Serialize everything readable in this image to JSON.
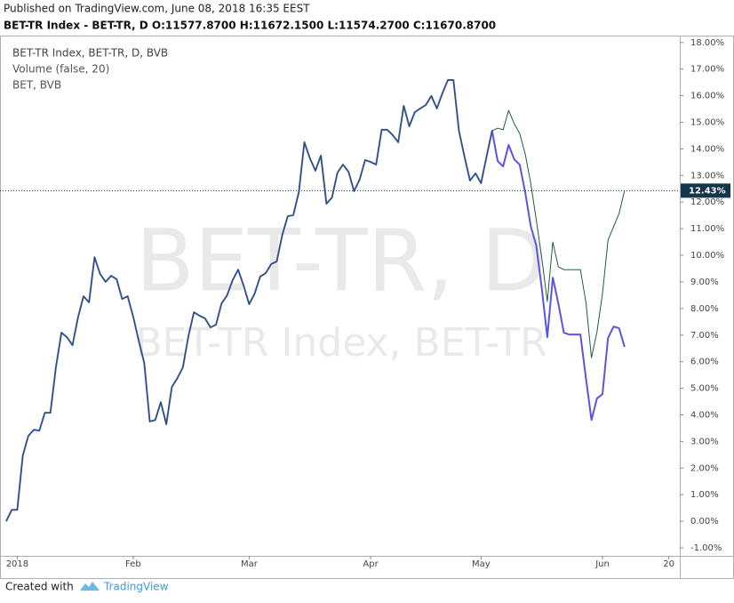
{
  "header": {
    "published": "Published on TradingView.com, June 08, 2018 16:35 EEST",
    "symbol_line": "BET-TR Index - BET-TR, D O:11577.8700 H:11672.1500 L:11574.2700 C:11670.8700"
  },
  "footer": {
    "created": "Created with",
    "brand": "TradingView"
  },
  "chart_data": {
    "type": "line",
    "watermark": [
      "BET-TR, D",
      "BET-TR Index, BET-TR"
    ],
    "indicator": "Volume (false, 20)",
    "x": [
      0,
      1,
      2,
      3,
      4,
      5,
      6,
      7,
      8,
      9,
      10,
      11,
      12,
      13,
      14,
      15,
      16,
      17,
      18,
      19,
      20,
      21,
      22,
      23,
      24,
      25,
      26,
      27,
      28,
      29,
      30,
      31,
      32,
      33,
      34,
      35,
      36,
      37,
      38,
      39,
      40,
      41,
      42,
      43,
      44,
      45,
      46,
      47,
      48,
      49,
      50,
      51,
      52,
      53,
      54,
      55,
      56,
      57,
      58,
      59,
      60,
      61,
      62,
      63,
      64,
      65,
      66,
      67,
      68,
      69,
      70,
      71,
      72,
      73,
      74,
      75,
      76,
      77,
      78,
      79,
      80,
      81,
      82,
      83,
      84,
      85,
      86,
      87,
      88,
      89,
      90,
      91,
      92,
      93,
      94,
      95,
      96,
      97,
      98,
      99,
      100,
      101,
      102,
      103,
      104,
      105,
      106,
      107,
      108,
      109,
      110,
      111,
      112
    ],
    "series": [
      {
        "name": "BET-TR Index, BET-TR, D, BVB",
        "color": "#1e5e3e",
        "width": 1,
        "last_value_label": "12.43%",
        "values": [
          0.0,
          0.43,
          0.43,
          2.47,
          3.21,
          3.44,
          3.41,
          4.08,
          4.08,
          5.79,
          7.09,
          6.92,
          6.62,
          7.66,
          8.46,
          8.23,
          9.93,
          9.3,
          9.0,
          9.23,
          9.1,
          8.36,
          8.46,
          7.69,
          6.79,
          5.95,
          3.75,
          3.81,
          4.48,
          3.65,
          5.05,
          5.38,
          5.79,
          6.96,
          7.86,
          7.73,
          7.63,
          7.29,
          7.39,
          8.19,
          8.49,
          9.06,
          9.46,
          8.86,
          8.16,
          8.56,
          9.2,
          9.33,
          9.67,
          9.77,
          10.77,
          11.47,
          11.51,
          12.37,
          14.25,
          13.65,
          13.18,
          13.75,
          11.94,
          12.17,
          13.11,
          13.41,
          13.14,
          12.41,
          12.84,
          13.58,
          13.51,
          13.41,
          14.72,
          14.72,
          14.52,
          14.25,
          15.62,
          14.85,
          15.38,
          15.52,
          15.65,
          15.99,
          15.52,
          16.09,
          16.59,
          16.59,
          14.68,
          13.71,
          12.81,
          13.08,
          12.71,
          13.71,
          14.68,
          14.78,
          14.72,
          15.45,
          14.95,
          14.58,
          13.81,
          12.71,
          11.34,
          9.9,
          8.26,
          10.5,
          9.57,
          9.46,
          9.46,
          9.46,
          9.46,
          8.23,
          6.15,
          7.12,
          8.56,
          10.57,
          11.07,
          11.57,
          12.43
        ]
      },
      {
        "name": "BET, BVB",
        "color": "#5a54e6",
        "width": 2,
        "values": [
          0.0,
          0.43,
          0.43,
          2.47,
          3.21,
          3.44,
          3.41,
          4.08,
          4.08,
          5.79,
          7.09,
          6.92,
          6.62,
          7.66,
          8.46,
          8.23,
          9.93,
          9.3,
          9.0,
          9.23,
          9.1,
          8.36,
          8.46,
          7.69,
          6.79,
          5.95,
          3.75,
          3.81,
          4.48,
          3.65,
          5.05,
          5.38,
          5.79,
          6.96,
          7.86,
          7.73,
          7.63,
          7.29,
          7.39,
          8.19,
          8.49,
          9.06,
          9.46,
          8.86,
          8.16,
          8.56,
          9.2,
          9.33,
          9.67,
          9.77,
          10.77,
          11.47,
          11.51,
          12.37,
          14.25,
          13.65,
          13.18,
          13.75,
          11.94,
          12.17,
          13.11,
          13.41,
          13.14,
          12.41,
          12.84,
          13.58,
          13.51,
          13.41,
          14.72,
          14.72,
          14.52,
          14.25,
          15.62,
          14.85,
          15.38,
          15.52,
          15.65,
          15.99,
          15.52,
          16.09,
          16.59,
          16.59,
          14.68,
          13.71,
          12.81,
          13.08,
          12.71,
          13.71,
          14.68,
          13.55,
          13.34,
          14.15,
          13.61,
          13.41,
          12.37,
          11.1,
          10.37,
          8.76,
          6.92,
          9.16,
          8.19,
          7.09,
          7.02,
          7.02,
          7.02,
          5.38,
          3.81,
          4.62,
          4.78,
          6.89,
          7.32,
          7.26,
          6.56
        ]
      }
    ],
    "xlim": [
      0,
      122
    ],
    "xticks": [
      {
        "value": 2,
        "label": "2018"
      },
      {
        "value": 23,
        "label": "Feb"
      },
      {
        "value": 44,
        "label": "Mar"
      },
      {
        "value": 66,
        "label": "Apr"
      },
      {
        "value": 86,
        "label": "May"
      },
      {
        "value": 108,
        "label": "Jun"
      },
      {
        "value": 120,
        "label": "20"
      }
    ],
    "ylim": [
      -1.3,
      18.26
    ],
    "yticks": [
      {
        "value": -1,
        "label": "-1.00%"
      },
      {
        "value": 0,
        "label": "0.00%"
      },
      {
        "value": 1,
        "label": "1.00%"
      },
      {
        "value": 2,
        "label": "2.00%"
      },
      {
        "value": 3,
        "label": "3.00%"
      },
      {
        "value": 4,
        "label": "4.00%"
      },
      {
        "value": 5,
        "label": "5.00%"
      },
      {
        "value": 6,
        "label": "6.00%"
      },
      {
        "value": 7,
        "label": "7.00%"
      },
      {
        "value": 8,
        "label": "8.00%"
      },
      {
        "value": 9,
        "label": "9.00%"
      },
      {
        "value": 10,
        "label": "10.00%"
      },
      {
        "value": 11,
        "label": "11.00%"
      },
      {
        "value": 12,
        "label": "12.00%"
      },
      {
        "value": 13,
        "label": "13.00%"
      },
      {
        "value": 14,
        "label": "14.00%"
      },
      {
        "value": 15,
        "label": "15.00%"
      },
      {
        "value": 16,
        "label": "16.00%"
      },
      {
        "value": 17,
        "label": "17.00%"
      },
      {
        "value": 18,
        "label": "18.00%"
      }
    ]
  }
}
